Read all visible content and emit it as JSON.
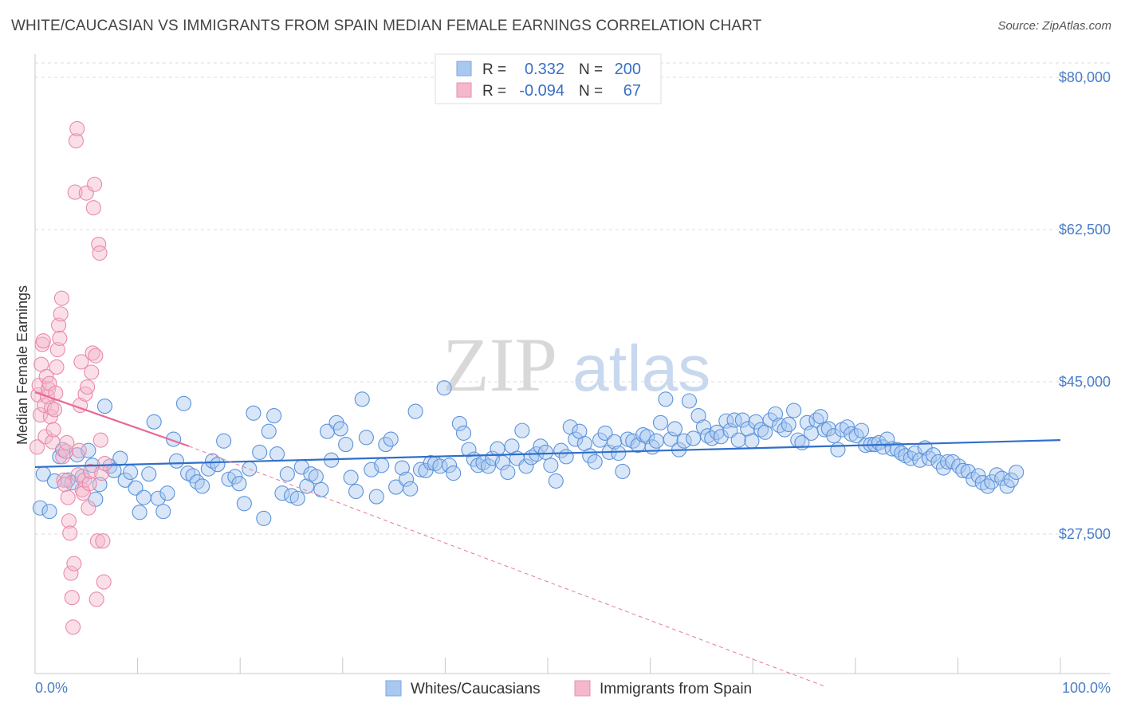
{
  "title": "WHITE/CAUCASIAN VS IMMIGRANTS FROM SPAIN MEDIAN FEMALE EARNINGS CORRELATION CHART",
  "source": "Source: ZipAtlas.com",
  "watermark": {
    "zip": "ZIP",
    "atlas": "atlas"
  },
  "legend": {
    "series1": {
      "r_label": "R =",
      "r_value": "0.332",
      "n_label": "N =",
      "n_value": "200"
    },
    "series2": {
      "r_label": "R =",
      "r_value": "-0.094",
      "n_label": "N =",
      "n_value": "67"
    }
  },
  "bottom_legend": [
    "Whites/Caucasians",
    "Immigrants from Spain"
  ],
  "colors": {
    "blue": "#4a86d4",
    "blue_fill": "#a9c8f0",
    "pink": "#e8789f",
    "pink_fill": "#f5b7cc",
    "tick": "#4a7ec8"
  },
  "chart_data": {
    "type": "scatter",
    "title": "WHITE/CAUCASIAN VS IMMIGRANTS FROM SPAIN MEDIAN FEMALE EARNINGS CORRELATION CHART",
    "xlabel": "",
    "ylabel": "Median Female Earnings",
    "xlim": [
      0,
      100
    ],
    "ylim": [
      10000,
      82000
    ],
    "x_tick_labels": [
      "0.0%",
      "100.0%"
    ],
    "y_ticks": [
      27500,
      45000,
      62500,
      80000
    ],
    "y_tick_labels": [
      "$27,500",
      "$45,000",
      "$62,500",
      "$80,000"
    ],
    "series": [
      {
        "name": "Whites/Caucasians",
        "r": 0.332,
        "n": 200,
        "trend": {
          "x": [
            0,
            100
          ],
          "y": [
            35200,
            38300
          ]
        },
        "points": [
          [
            0.5,
            30500
          ],
          [
            0.8,
            34400
          ],
          [
            1.4,
            30100
          ],
          [
            1.9,
            33600
          ],
          [
            2.4,
            36400
          ],
          [
            2.7,
            37200
          ],
          [
            3.2,
            33700
          ],
          [
            3.6,
            33400
          ],
          [
            4.1,
            36600
          ],
          [
            4.6,
            34100
          ],
          [
            5.2,
            37100
          ],
          [
            5.6,
            35400
          ],
          [
            5.9,
            31500
          ],
          [
            6.3,
            33200
          ],
          [
            6.8,
            42200
          ],
          [
            7.3,
            35300
          ],
          [
            7.7,
            34800
          ],
          [
            8.3,
            36200
          ],
          [
            8.8,
            33700
          ],
          [
            9.3,
            34600
          ],
          [
            9.8,
            32800
          ],
          [
            10.2,
            30000
          ],
          [
            10.6,
            31700
          ],
          [
            11.1,
            34400
          ],
          [
            11.6,
            40400
          ],
          [
            12.0,
            31600
          ],
          [
            12.5,
            30100
          ],
          [
            12.9,
            32200
          ],
          [
            13.5,
            38400
          ],
          [
            13.8,
            35900
          ],
          [
            14.5,
            42500
          ],
          [
            14.9,
            34500
          ],
          [
            15.4,
            34200
          ],
          [
            15.8,
            33500
          ],
          [
            16.3,
            33000
          ],
          [
            16.9,
            35000
          ],
          [
            17.3,
            35900
          ],
          [
            17.8,
            35500
          ],
          [
            18.4,
            38200
          ],
          [
            18.9,
            33800
          ],
          [
            19.5,
            34100
          ],
          [
            19.9,
            33300
          ],
          [
            20.4,
            31000
          ],
          [
            20.9,
            35000
          ],
          [
            21.3,
            41400
          ],
          [
            21.9,
            36900
          ],
          [
            22.3,
            29300
          ],
          [
            22.8,
            39300
          ],
          [
            23.3,
            41100
          ],
          [
            23.6,
            36700
          ],
          [
            24.1,
            32200
          ],
          [
            24.6,
            34400
          ],
          [
            25.0,
            31900
          ],
          [
            25.6,
            31600
          ],
          [
            26.0,
            35200
          ],
          [
            26.5,
            33000
          ],
          [
            26.9,
            34400
          ],
          [
            27.4,
            34100
          ],
          [
            27.9,
            32600
          ],
          [
            28.5,
            39300
          ],
          [
            28.9,
            36000
          ],
          [
            29.4,
            40300
          ],
          [
            29.8,
            39600
          ],
          [
            30.3,
            37800
          ],
          [
            30.8,
            34000
          ],
          [
            31.3,
            32400
          ],
          [
            31.9,
            43000
          ],
          [
            32.3,
            38600
          ],
          [
            32.8,
            34900
          ],
          [
            33.3,
            31800
          ],
          [
            33.8,
            35400
          ],
          [
            34.2,
            37800
          ],
          [
            34.7,
            38400
          ],
          [
            35.2,
            32900
          ],
          [
            35.8,
            35100
          ],
          [
            36.2,
            33800
          ],
          [
            36.6,
            32700
          ],
          [
            37.1,
            41600
          ],
          [
            37.6,
            34900
          ],
          [
            38.1,
            34800
          ],
          [
            38.6,
            35700
          ],
          [
            39.0,
            35600
          ],
          [
            39.5,
            35300
          ],
          [
            39.9,
            44300
          ],
          [
            40.4,
            35400
          ],
          [
            40.8,
            34500
          ],
          [
            41.4,
            40200
          ],
          [
            41.8,
            39100
          ],
          [
            42.3,
            37200
          ],
          [
            42.8,
            36100
          ],
          [
            43.2,
            35400
          ],
          [
            43.7,
            35700
          ],
          [
            44.2,
            35300
          ],
          [
            44.6,
            36200
          ],
          [
            45.1,
            37300
          ],
          [
            45.6,
            35700
          ],
          [
            46.1,
            34600
          ],
          [
            46.5,
            37600
          ],
          [
            47.0,
            36200
          ],
          [
            47.5,
            39400
          ],
          [
            47.9,
            35300
          ],
          [
            48.4,
            36300
          ],
          [
            48.9,
            36700
          ],
          [
            49.3,
            37600
          ],
          [
            49.8,
            36900
          ],
          [
            50.3,
            35400
          ],
          [
            50.8,
            33600
          ],
          [
            51.3,
            37100
          ],
          [
            51.8,
            36400
          ],
          [
            52.2,
            39800
          ],
          [
            52.7,
            38400
          ],
          [
            53.1,
            39300
          ],
          [
            53.6,
            37900
          ],
          [
            54.1,
            36500
          ],
          [
            54.6,
            35800
          ],
          [
            55.1,
            38300
          ],
          [
            55.6,
            39100
          ],
          [
            56.0,
            36900
          ],
          [
            56.5,
            38100
          ],
          [
            56.9,
            36800
          ],
          [
            57.3,
            34700
          ],
          [
            57.8,
            38400
          ],
          [
            58.3,
            38200
          ],
          [
            58.8,
            37700
          ],
          [
            59.3,
            38900
          ],
          [
            59.7,
            38700
          ],
          [
            60.2,
            37500
          ],
          [
            60.6,
            38200
          ],
          [
            61.0,
            40300
          ],
          [
            61.5,
            43000
          ],
          [
            62.0,
            38400
          ],
          [
            62.4,
            39600
          ],
          [
            62.8,
            37200
          ],
          [
            63.3,
            38200
          ],
          [
            63.8,
            42800
          ],
          [
            64.2,
            38500
          ],
          [
            64.7,
            41100
          ],
          [
            65.2,
            39800
          ],
          [
            65.6,
            38800
          ],
          [
            66.0,
            38500
          ],
          [
            66.5,
            39200
          ],
          [
            66.9,
            38700
          ],
          [
            67.4,
            40500
          ],
          [
            67.8,
            39400
          ],
          [
            68.2,
            40600
          ],
          [
            68.6,
            38300
          ],
          [
            69.0,
            40600
          ],
          [
            69.5,
            39600
          ],
          [
            69.9,
            38200
          ],
          [
            70.3,
            40400
          ],
          [
            70.8,
            39500
          ],
          [
            71.2,
            39200
          ],
          [
            71.7,
            40600
          ],
          [
            72.2,
            41300
          ],
          [
            72.6,
            40000
          ],
          [
            73.1,
            39500
          ],
          [
            73.5,
            40100
          ],
          [
            74.0,
            41700
          ],
          [
            74.4,
            38300
          ],
          [
            74.8,
            38000
          ],
          [
            75.3,
            40300
          ],
          [
            75.7,
            39100
          ],
          [
            76.2,
            40600
          ],
          [
            76.6,
            41000
          ],
          [
            77.0,
            39500
          ],
          [
            77.4,
            39600
          ],
          [
            77.9,
            38800
          ],
          [
            78.3,
            37200
          ],
          [
            78.7,
            39500
          ],
          [
            79.2,
            39800
          ],
          [
            79.6,
            39000
          ],
          [
            80.1,
            38800
          ],
          [
            80.6,
            39400
          ],
          [
            81.0,
            37700
          ],
          [
            81.5,
            37800
          ],
          [
            81.9,
            37800
          ],
          [
            82.3,
            38000
          ],
          [
            82.7,
            37500
          ],
          [
            83.1,
            38400
          ],
          [
            83.6,
            37300
          ],
          [
            84.1,
            37200
          ],
          [
            84.5,
            36800
          ],
          [
            84.9,
            36500
          ],
          [
            85.4,
            36200
          ],
          [
            85.8,
            36800
          ],
          [
            86.3,
            36000
          ],
          [
            86.8,
            37400
          ],
          [
            87.2,
            36200
          ],
          [
            87.6,
            36600
          ],
          [
            88.1,
            35800
          ],
          [
            88.6,
            35100
          ],
          [
            89.0,
            35800
          ],
          [
            89.5,
            35800
          ],
          [
            90.1,
            35300
          ],
          [
            90.5,
            34800
          ],
          [
            91.0,
            34700
          ],
          [
            91.5,
            33800
          ],
          [
            92.0,
            34200
          ],
          [
            92.4,
            33400
          ],
          [
            92.9,
            33000
          ],
          [
            93.3,
            33500
          ],
          [
            93.8,
            34300
          ],
          [
            94.3,
            33900
          ],
          [
            94.8,
            33000
          ],
          [
            95.2,
            33700
          ],
          [
            95.7,
            34600
          ]
        ]
      },
      {
        "name": "Immigrants from Spain",
        "r": -0.094,
        "n": 67,
        "trend": {
          "x": [
            0,
            15
          ],
          "y": [
            43800,
            37600
          ]
        },
        "trend_dashed": {
          "x": [
            15,
            77
          ],
          "y": [
            37600,
            10000
          ]
        },
        "points": [
          [
            0.2,
            37500
          ],
          [
            0.3,
            43500
          ],
          [
            0.4,
            44600
          ],
          [
            0.5,
            41200
          ],
          [
            0.6,
            47000
          ],
          [
            0.7,
            49300
          ],
          [
            0.8,
            49700
          ],
          [
            0.9,
            42300
          ],
          [
            1.0,
            38700
          ],
          [
            1.1,
            45600
          ],
          [
            1.2,
            43300
          ],
          [
            1.3,
            44200
          ],
          [
            1.4,
            44800
          ],
          [
            1.5,
            41000
          ],
          [
            1.6,
            42000
          ],
          [
            1.7,
            38100
          ],
          [
            1.8,
            39500
          ],
          [
            1.9,
            41800
          ],
          [
            2.0,
            43700
          ],
          [
            2.1,
            46700
          ],
          [
            2.2,
            48700
          ],
          [
            2.3,
            51500
          ],
          [
            2.4,
            50000
          ],
          [
            2.5,
            52800
          ],
          [
            2.6,
            54600
          ],
          [
            2.7,
            36400
          ],
          [
            2.8,
            33700
          ],
          [
            2.9,
            33200
          ],
          [
            3.0,
            37000
          ],
          [
            3.1,
            38000
          ],
          [
            3.2,
            31700
          ],
          [
            3.3,
            29000
          ],
          [
            3.4,
            27600
          ],
          [
            3.5,
            23000
          ],
          [
            3.6,
            20200
          ],
          [
            3.7,
            16800
          ],
          [
            3.8,
            24100
          ],
          [
            3.9,
            66800
          ],
          [
            4.0,
            72700
          ],
          [
            4.1,
            74100
          ],
          [
            4.2,
            34300
          ],
          [
            4.3,
            37100
          ],
          [
            4.4,
            42300
          ],
          [
            4.5,
            47300
          ],
          [
            4.6,
            32600
          ],
          [
            4.7,
            32200
          ],
          [
            4.8,
            33700
          ],
          [
            4.9,
            43600
          ],
          [
            5.0,
            66700
          ],
          [
            5.1,
            44400
          ],
          [
            5.2,
            30500
          ],
          [
            5.3,
            33300
          ],
          [
            5.4,
            34700
          ],
          [
            5.5,
            46100
          ],
          [
            5.6,
            48300
          ],
          [
            5.7,
            65000
          ],
          [
            5.8,
            67700
          ],
          [
            5.9,
            48000
          ],
          [
            6.0,
            20000
          ],
          [
            6.1,
            26700
          ],
          [
            6.2,
            60800
          ],
          [
            6.3,
            59800
          ],
          [
            6.4,
            38300
          ],
          [
            6.5,
            34500
          ],
          [
            6.6,
            26700
          ],
          [
            6.7,
            22000
          ],
          [
            6.8,
            35600
          ]
        ]
      }
    ]
  }
}
